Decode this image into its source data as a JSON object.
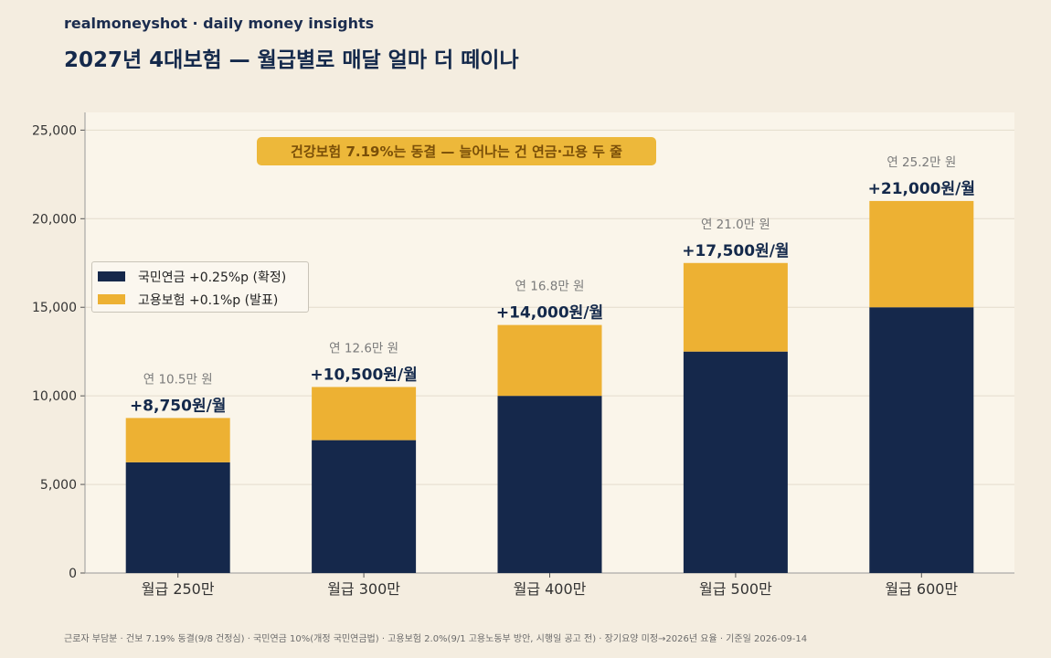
{
  "header": {
    "brand": "realmoneyshot · daily money insights",
    "title": "2027년 4대보험 — 월급별로 매달 얼마 더 떼이나"
  },
  "callout": "건강보험 7.19%는 동결 — 늘어나는 건 연금·고용 두 줄",
  "footnote": "근로자 부담분 · 건보 7.19% 동결(9/8 건정심) · 국민연금 10%(개정 국민연금법) · 고용보험 2.0%(9/1 고용노동부 방안, 시행일 공고 전) · 장기요양 미정→2026년 요율 · 기준일 2026-09-14",
  "colors": {
    "pension": "#15284b",
    "employment": "#edb133",
    "plot_bg": "#faf5ea",
    "page_bg": "#f4ede0"
  },
  "chart_data": {
    "type": "bar",
    "stacked": true,
    "categories": [
      "월급 250만",
      "월급 300만",
      "월급 400만",
      "월급 500만",
      "월급 600만"
    ],
    "series": [
      {
        "name": "국민연금 +0.25%p (확정)",
        "values": [
          6250,
          7500,
          10000,
          12500,
          15000
        ]
      },
      {
        "name": "고용보험 +0.1%p (발표)",
        "values": [
          2500,
          3000,
          4000,
          5000,
          6000
        ]
      }
    ],
    "total_labels": [
      "+8,750원/월",
      "+10,500원/월",
      "+14,000원/월",
      "+17,500원/월",
      "+21,000원/월"
    ],
    "annual_labels": [
      "연 10.5만 원",
      "연 12.6만 원",
      "연 16.8만 원",
      "연 21.0만 원",
      "연 25.2만 원"
    ],
    "y_ticks": [
      "0",
      "5,000",
      "10,000",
      "15,000",
      "20,000",
      "25,000"
    ],
    "ylim": [
      0,
      26000
    ],
    "grid": true,
    "legend_position": "left-middle",
    "title": "2027년 4대보험 — 월급별로 매달 얼마 더 떼이나",
    "xlabel": "",
    "ylabel": ""
  }
}
